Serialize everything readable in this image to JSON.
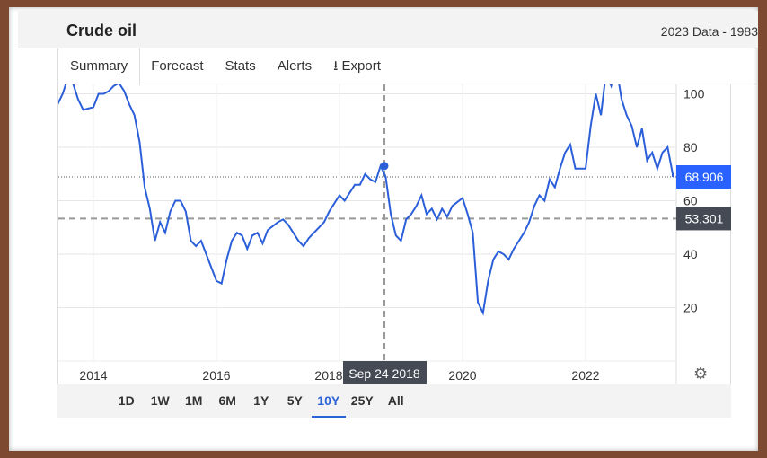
{
  "header": {
    "title": "Crude oil",
    "subtitle": "2023 Data - 1983"
  },
  "tabs": [
    {
      "label": "Summary",
      "active": true
    },
    {
      "label": "Forecast"
    },
    {
      "label": "Stats"
    },
    {
      "label": "Alerts"
    },
    {
      "label": "Export",
      "icon": "download-icon"
    }
  ],
  "ranges": [
    {
      "label": "1D"
    },
    {
      "label": "1W"
    },
    {
      "label": "1M"
    },
    {
      "label": "6M"
    },
    {
      "label": "1Y"
    },
    {
      "label": "5Y"
    },
    {
      "label": "10Y",
      "active": true
    },
    {
      "label": "25Y"
    },
    {
      "label": "All"
    }
  ],
  "settings_icon": "gear-icon",
  "chart_data": {
    "type": "line",
    "x_ticks": [
      "2014",
      "2016",
      "2018",
      "2020",
      "2022"
    ],
    "y_ticks": [
      20,
      40,
      60,
      80,
      100
    ],
    "ylim": [
      0,
      104
    ],
    "xlim": [
      "2013-06",
      "2023-06"
    ],
    "grid": true,
    "line_color": "#2b5fd9",
    "last_value": {
      "label": "68.906",
      "value": 68.906,
      "color": "#2962ff"
    },
    "crosshair": {
      "date_label": "Sep 24 2018",
      "date": "2018-09-24",
      "value_label": "53.301",
      "value": 53.301
    },
    "points": [
      [
        "2013-06",
        96
      ],
      [
        "2013-07",
        100
      ],
      [
        "2013-08",
        106
      ],
      [
        "2013-09",
        104
      ],
      [
        "2013-10",
        98
      ],
      [
        "2013-11",
        94
      ],
      [
        "2014-01",
        95
      ],
      [
        "2014-02",
        100
      ],
      [
        "2014-03",
        100
      ],
      [
        "2014-04",
        101
      ],
      [
        "2014-05",
        103
      ],
      [
        "2014-06",
        104
      ],
      [
        "2014-07",
        101
      ],
      [
        "2014-08",
        96
      ],
      [
        "2014-09",
        92
      ],
      [
        "2014-10",
        82
      ],
      [
        "2014-11",
        65
      ],
      [
        "2014-12",
        57
      ],
      [
        "2015-01",
        45
      ],
      [
        "2015-02",
        52
      ],
      [
        "2015-03",
        48
      ],
      [
        "2015-04",
        56
      ],
      [
        "2015-05",
        60
      ],
      [
        "2015-06",
        60
      ],
      [
        "2015-07",
        56
      ],
      [
        "2015-08",
        45
      ],
      [
        "2015-09",
        43
      ],
      [
        "2015-10",
        45
      ],
      [
        "2015-11",
        40
      ],
      [
        "2015-12",
        35
      ],
      [
        "2016-01",
        30
      ],
      [
        "2016-02",
        29
      ],
      [
        "2016-03",
        38
      ],
      [
        "2016-04",
        45
      ],
      [
        "2016-05",
        48
      ],
      [
        "2016-06",
        47
      ],
      [
        "2016-07",
        42
      ],
      [
        "2016-08",
        47
      ],
      [
        "2016-09",
        48
      ],
      [
        "2016-10",
        44
      ],
      [
        "2016-11",
        49
      ],
      [
        "2017-01",
        52
      ],
      [
        "2017-02",
        53
      ],
      [
        "2017-03",
        51
      ],
      [
        "2017-04",
        48
      ],
      [
        "2017-05",
        45
      ],
      [
        "2017-06",
        43
      ],
      [
        "2017-07",
        46
      ],
      [
        "2017-08",
        48
      ],
      [
        "2017-09",
        50
      ],
      [
        "2017-10",
        52
      ],
      [
        "2017-11",
        56
      ],
      [
        "2018-01",
        62
      ],
      [
        "2018-02",
        60
      ],
      [
        "2018-03",
        63
      ],
      [
        "2018-04",
        66
      ],
      [
        "2018-05",
        66
      ],
      [
        "2018-06",
        70
      ],
      [
        "2018-07",
        68
      ],
      [
        "2018-08",
        67
      ],
      [
        "2018-09",
        73
      ],
      [
        "2018-10",
        69
      ],
      [
        "2018-11",
        55
      ],
      [
        "2018-12",
        47
      ],
      [
        "2019-01",
        45
      ],
      [
        "2019-02",
        53
      ],
      [
        "2019-03",
        55
      ],
      [
        "2019-04",
        58
      ],
      [
        "2019-05",
        62
      ],
      [
        "2019-06",
        55
      ],
      [
        "2019-07",
        57
      ],
      [
        "2019-08",
        53
      ],
      [
        "2019-09",
        57
      ],
      [
        "2019-10",
        54
      ],
      [
        "2019-11",
        58
      ],
      [
        "2020-01",
        61
      ],
      [
        "2020-02",
        55
      ],
      [
        "2020-03",
        48
      ],
      [
        "2020-04",
        22
      ],
      [
        "2020-05",
        18
      ],
      [
        "2020-06",
        30
      ],
      [
        "2020-07",
        38
      ],
      [
        "2020-08",
        41
      ],
      [
        "2020-09",
        40
      ],
      [
        "2020-10",
        38
      ],
      [
        "2020-11",
        42
      ],
      [
        "2021-01",
        48
      ],
      [
        "2021-02",
        52
      ],
      [
        "2021-03",
        58
      ],
      [
        "2021-04",
        62
      ],
      [
        "2021-05",
        60
      ],
      [
        "2021-06",
        68
      ],
      [
        "2021-07",
        65
      ],
      [
        "2021-08",
        72
      ],
      [
        "2021-09",
        78
      ],
      [
        "2021-10",
        81
      ],
      [
        "2021-11",
        72
      ],
      [
        "2022-01",
        72
      ],
      [
        "2022-02",
        88
      ],
      [
        "2022-03",
        100
      ],
      [
        "2022-04",
        92
      ],
      [
        "2022-05",
        108
      ],
      [
        "2022-06",
        103
      ],
      [
        "2022-07",
        110
      ],
      [
        "2022-08",
        98
      ],
      [
        "2022-09",
        92
      ],
      [
        "2022-10",
        88
      ],
      [
        "2022-11",
        80
      ],
      [
        "2022-12",
        87
      ],
      [
        "2023-01",
        75
      ],
      [
        "2023-02",
        78
      ],
      [
        "2023-03",
        72
      ],
      [
        "2023-04",
        78
      ],
      [
        "2023-05",
        80
      ],
      [
        "2023-06",
        70
      ],
      [
        "2023-06",
        68.906
      ]
    ]
  }
}
